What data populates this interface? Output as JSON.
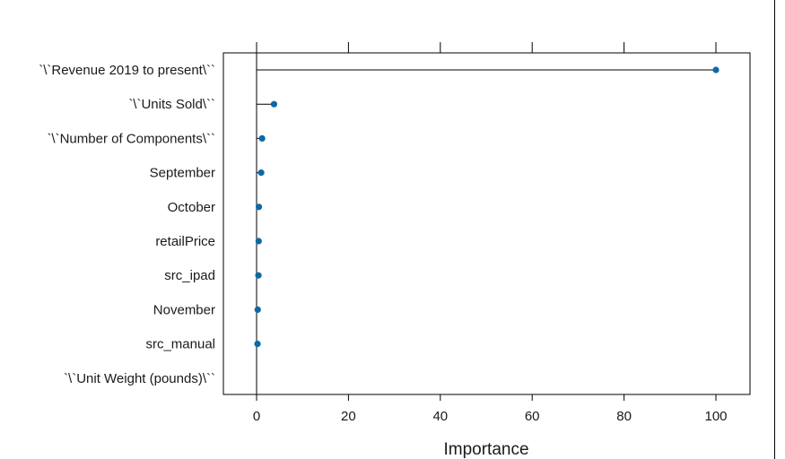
{
  "chart_data": {
    "type": "lollipop",
    "title": "",
    "xlabel": "Importance",
    "ylabel": "",
    "xlim": [
      -7,
      107
    ],
    "xticks": [
      0,
      20,
      40,
      60,
      80,
      100
    ],
    "grid": false,
    "legend": "none",
    "marker_color": "#0b6aa6",
    "categories": [
      "`\\`Revenue 2019 to present\\``",
      "`\\`Units Sold\\``",
      "`\\`Number of Components\\``",
      "September",
      "October",
      "retailPrice",
      "src_ipad",
      "November",
      "src_manual",
      "`\\`Unit Weight (pounds)\\``"
    ],
    "values": [
      100,
      3.8,
      1.2,
      1.0,
      0.5,
      0.45,
      0.4,
      0.25,
      0.2,
      0
    ]
  }
}
